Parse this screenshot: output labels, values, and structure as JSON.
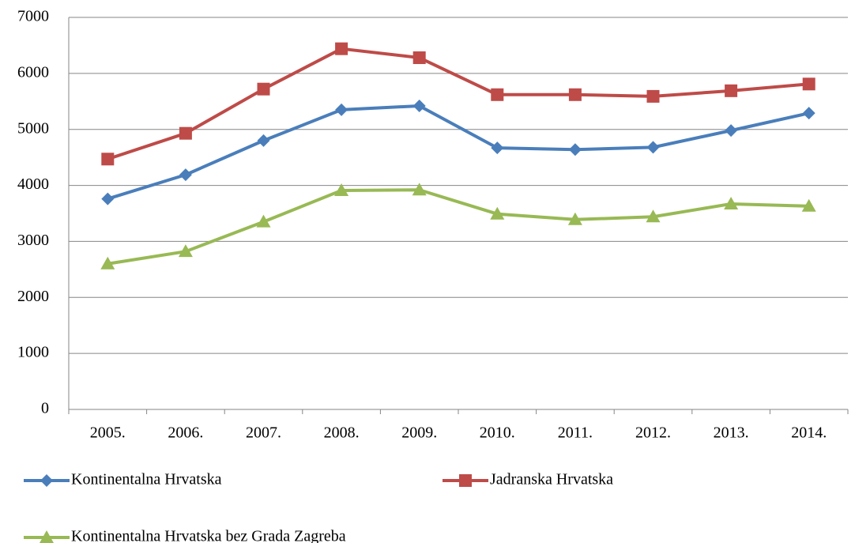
{
  "chart_data": {
    "type": "line",
    "categories": [
      "2005.",
      "2006.",
      "2007.",
      "2008.",
      "2009.",
      "2010.",
      "2011.",
      "2012.",
      "2013.",
      "2014."
    ],
    "series": [
      {
        "name": "Kontinentalna Hrvatska",
        "color": "#4a7ebb",
        "marker": "diamond",
        "values": [
          3760,
          4190,
          4800,
          5350,
          5420,
          4670,
          4640,
          4680,
          4980,
          5290
        ]
      },
      {
        "name": "Jadranska Hrvatska",
        "color": "#be4b48",
        "marker": "square",
        "values": [
          4470,
          4930,
          5720,
          6440,
          6280,
          5620,
          5620,
          5590,
          5690,
          5810
        ]
      },
      {
        "name": "Kontinentalna Hrvatska bez Grada Zagreba",
        "color": "#98b954",
        "marker": "triangle",
        "values": [
          2600,
          2820,
          3350,
          3910,
          3920,
          3490,
          3390,
          3440,
          3670,
          3630
        ]
      }
    ],
    "ylim": [
      0,
      7000
    ],
    "yticks": [
      0,
      1000,
      2000,
      3000,
      4000,
      5000,
      6000,
      7000
    ],
    "grid": true,
    "legend": "bottom"
  }
}
